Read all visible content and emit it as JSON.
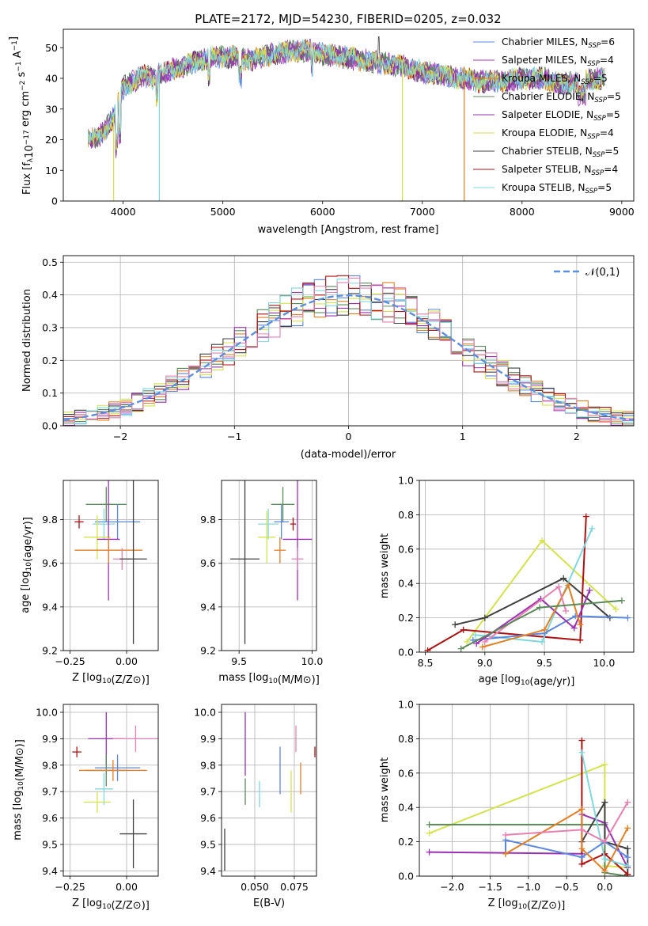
{
  "title": "PLATE=2172, MJD=54230, FIBERID=0205, z=0.032",
  "colors": {
    "Chabrier MILES": "#5b87e0",
    "Salpeter MILES": "#a836b8",
    "Kroupa MILES": "#e67e22",
    "Chabrier ELODIE": "#5a8a5a",
    "Salpeter ELODIE": "#9b2fb5",
    "Kroupa ELODIE": "#d4e34a",
    "Chabrier STELIB": "#404040",
    "Salpeter STELIB": "#b01010",
    "Kroupa STELIB": "#7fd8de",
    "pink": "#e87fb0",
    "normal_curve": "#5b8fe0"
  },
  "chart_data": [
    {
      "id": "spectrum",
      "type": "line",
      "xlabel": "wavelength [Angstrom, rest frame]",
      "ylabel": "Flux [f_λ10^-17 erg cm^-2 s^-1 A^-1]",
      "xlim": [
        3400,
        9120
      ],
      "ylim": [
        0,
        56
      ],
      "xticks": [
        4000,
        5000,
        6000,
        7000,
        8000,
        9000
      ],
      "yticks": [
        0,
        10,
        20,
        30,
        40,
        50
      ],
      "legend_position": "top-right",
      "legend": [
        {
          "label": "Chabrier MILES, N",
          "sub": "SSP",
          "tail": "=6",
          "color_key": "Chabrier MILES"
        },
        {
          "label": "Salpeter MILES, N",
          "sub": "SSP",
          "tail": "=4",
          "color_key": "Salpeter MILES"
        },
        {
          "label": "Kroupa MILES, N",
          "sub": "SSP",
          "tail": "=5",
          "color_key": "Kroupa MILES"
        },
        {
          "label": "Chabrier ELODIE, N",
          "sub": "SSP",
          "tail": "=5",
          "color_key": "Chabrier ELODIE"
        },
        {
          "label": "Salpeter ELODIE, N",
          "sub": "SSP",
          "tail": "=5",
          "color_key": "Salpeter ELODIE"
        },
        {
          "label": "Kroupa ELODIE, N",
          "sub": "SSP",
          "tail": "=4",
          "color_key": "Kroupa ELODIE"
        },
        {
          "label": "Chabrier STELIB, N",
          "sub": "SSP",
          "tail": "=5",
          "color_key": "Chabrier STELIB"
        },
        {
          "label": "Salpeter STELIB, N",
          "sub": "SSP",
          "tail": "=4",
          "color_key": "Salpeter STELIB"
        },
        {
          "label": "Kroupa STELIB, N",
          "sub": "SSP",
          "tail": "=5",
          "color_key": "Kroupa STELIB"
        }
      ],
      "continuum": {
        "x": [
          3650,
          3700,
          3800,
          3850,
          3900,
          4000,
          4100,
          4200,
          4300,
          4400,
          4500,
          4700,
          4900,
          5100,
          5300,
          5500,
          5700,
          5900,
          6000,
          6200,
          6400,
          6600,
          6800,
          7000,
          7200,
          7400,
          7600,
          7800,
          8000,
          8200,
          8400,
          8600,
          8800
        ],
        "y": [
          21,
          20,
          22,
          25,
          27,
          37,
          39,
          41,
          40,
          42,
          43,
          45,
          47,
          47,
          46,
          48,
          49,
          49,
          48,
          47,
          46,
          45,
          44,
          42,
          41,
          40,
          39,
          39,
          40,
          40,
          38,
          39,
          40
        ]
      },
      "dips": [
        {
          "x": 3905,
          "y": 0,
          "color_key": "Kroupa ELODIE"
        },
        {
          "x": 4363,
          "y": 0,
          "color_key": "Kroupa STELIB"
        },
        {
          "x": 6800,
          "y": 0,
          "color_key": "Kroupa ELODIE"
        },
        {
          "x": 7420,
          "y": 0,
          "color_key": "Kroupa MILES"
        }
      ]
    },
    {
      "id": "residual_histogram",
      "type": "histogram",
      "xlabel": "(data-model)/error",
      "ylabel": "Normed distribution",
      "xlim": [
        -2.5,
        2.5
      ],
      "ylim": [
        0,
        0.52
      ],
      "xticks": [
        -2,
        -1,
        0,
        1,
        2
      ],
      "yticks": [
        0.0,
        0.1,
        0.2,
        0.3,
        0.4,
        0.5
      ],
      "grid": true,
      "legend_position": "top-right",
      "legend": [
        {
          "label": "𝒩(0,1)",
          "color_key": "normal_curve"
        }
      ],
      "bin_width": 0.1,
      "bin_start": -2.5,
      "series": [
        {
          "color_key": "Chabrier MILES",
          "noise_seed": 1
        },
        {
          "color_key": "Kroupa MILES",
          "noise_seed": 2
        },
        {
          "color_key": "Chabrier ELODIE",
          "noise_seed": 3
        },
        {
          "color_key": "Salpeter ELODIE",
          "noise_seed": 4
        },
        {
          "color_key": "Kroupa ELODIE",
          "noise_seed": 5
        },
        {
          "color_key": "Chabrier STELIB",
          "noise_seed": 6
        },
        {
          "color_key": "Salpeter STELIB",
          "noise_seed": 7
        },
        {
          "color_key": "Kroupa STELIB",
          "noise_seed": 8
        },
        {
          "color_key": "pink",
          "noise_seed": 9
        }
      ]
    },
    {
      "id": "age_vs_z",
      "type": "errorbar",
      "xlabel": "Z [log10(Z/Z⊙)]",
      "ylabel": "age [log10(age/yr)]",
      "xlim": [
        -0.28,
        0.14
      ],
      "ylim": [
        9.2,
        9.98
      ],
      "xticks": [
        -0.25,
        0.0
      ],
      "yticks": [
        9.2,
        9.4,
        9.6,
        9.8
      ],
      "points": [
        {
          "x": -0.09,
          "y": 9.87,
          "xerr": 0.09,
          "yerr": 0.08,
          "color_key": "Chabrier ELODIE"
        },
        {
          "x": -0.04,
          "y": 9.79,
          "xerr": 0.1,
          "yerr": 0.08,
          "color_key": "Chabrier MILES"
        },
        {
          "x": -0.21,
          "y": 9.79,
          "xerr": 0.02,
          "yerr": 0.03,
          "color_key": "Salpeter STELIB"
        },
        {
          "x": -0.1,
          "y": 9.78,
          "xerr": 0.05,
          "yerr": 0.07,
          "color_key": "Kroupa STELIB"
        },
        {
          "x": -0.13,
          "y": 9.72,
          "xerr": 0.06,
          "yerr": 0.1,
          "color_key": "Kroupa ELODIE"
        },
        {
          "x": -0.08,
          "y": 9.71,
          "xerr": 0.05,
          "yerr": 0.28,
          "color_key": "Salpeter ELODIE"
        },
        {
          "x": -0.08,
          "y": 9.66,
          "xerr": 0.15,
          "yerr": 0.06,
          "color_key": "Kroupa MILES"
        },
        {
          "x": -0.02,
          "y": 9.62,
          "xerr": 0.04,
          "yerr": 0.05,
          "color_key": "pink"
        },
        {
          "x": 0.03,
          "y": 9.62,
          "xerr": 0.06,
          "yerr": 0.39,
          "color_key": "Chabrier STELIB"
        }
      ]
    },
    {
      "id": "age_vs_mass",
      "type": "errorbar",
      "xlabel": "mass [log10(M/M⊙)]",
      "ylabel": "",
      "xlim": [
        9.38,
        10.03
      ],
      "ylim": [
        9.2,
        9.98
      ],
      "xticks": [
        9.5,
        10.0
      ],
      "yticks": [
        9.2,
        9.4,
        9.6,
        9.8
      ],
      "points": [
        {
          "x": 9.8,
          "y": 9.87,
          "xerr": 0.08,
          "yerr": 0.08,
          "color_key": "Chabrier ELODIE"
        },
        {
          "x": 9.79,
          "y": 9.79,
          "xerr": 0.05,
          "yerr": 0.08,
          "color_key": "Chabrier MILES"
        },
        {
          "x": 9.87,
          "y": 9.78,
          "xerr": 0.02,
          "yerr": 0.03,
          "color_key": "Salpeter STELIB"
        },
        {
          "x": 9.7,
          "y": 9.78,
          "xerr": 0.07,
          "yerr": 0.07,
          "color_key": "Kroupa STELIB"
        },
        {
          "x": 9.69,
          "y": 9.72,
          "xerr": 0.06,
          "yerr": 0.12,
          "color_key": "Kroupa ELODIE"
        },
        {
          "x": 9.9,
          "y": 9.71,
          "xerr": 0.1,
          "yerr": 0.28,
          "color_key": "Salpeter ELODIE"
        },
        {
          "x": 9.78,
          "y": 9.66,
          "xerr": 0.04,
          "yerr": 0.06,
          "color_key": "Kroupa MILES"
        },
        {
          "x": 9.9,
          "y": 9.62,
          "xerr": 0.04,
          "yerr": 0.05,
          "color_key": "pink"
        },
        {
          "x": 9.54,
          "y": 9.62,
          "xerr": 0.1,
          "yerr": 0.39,
          "color_key": "Chabrier STELIB"
        }
      ]
    },
    {
      "id": "mass_weight_vs_age",
      "type": "line",
      "xlabel": "age [log10(age/yr)]",
      "ylabel": "mass weight",
      "xlim": [
        8.45,
        10.25
      ],
      "ylim": [
        0.0,
        1.0
      ],
      "xticks": [
        8.5,
        9.0,
        9.5,
        10.0
      ],
      "yticks": [
        0.0,
        0.2,
        0.4,
        0.6,
        0.8,
        1.0
      ],
      "grid": true,
      "series": [
        {
          "color_key": "Kroupa ELODIE",
          "x": [
            8.85,
            9.48,
            10.1
          ],
          "y": [
            0.06,
            0.65,
            0.25
          ]
        },
        {
          "color_key": "Chabrier STELIB",
          "x": [
            8.75,
            9.0,
            9.66,
            10.05
          ],
          "y": [
            0.16,
            0.2,
            0.43,
            0.2
          ]
        },
        {
          "color_key": "Salpeter STELIB",
          "x": [
            8.52,
            8.82,
            9.8,
            9.85
          ],
          "y": [
            0.01,
            0.13,
            0.07,
            0.79
          ]
        },
        {
          "color_key": "Kroupa STELIB",
          "x": [
            8.92,
            9.48,
            9.9
          ],
          "y": [
            0.1,
            0.06,
            0.72
          ]
        },
        {
          "color_key": "Chabrier MILES",
          "x": [
            8.9,
            9.5,
            9.76,
            10.2
          ],
          "y": [
            0.07,
            0.11,
            0.21,
            0.2
          ]
        },
        {
          "color_key": "Salpeter ELODIE",
          "x": [
            8.93,
            9.47,
            9.75,
            9.88
          ],
          "y": [
            0.05,
            0.31,
            0.14,
            0.36
          ]
        },
        {
          "color_key": "Kroupa MILES",
          "x": [
            8.98,
            9.5,
            9.7,
            9.8
          ],
          "y": [
            0.03,
            0.13,
            0.39,
            0.16
          ]
        },
        {
          "color_key": "pink",
          "x": [
            9.0,
            9.62,
            9.68
          ],
          "y": [
            0.06,
            0.38,
            0.24
          ]
        },
        {
          "color_key": "Chabrier ELODIE",
          "x": [
            8.8,
            9.46,
            10.15
          ],
          "y": [
            0.02,
            0.26,
            0.3
          ]
        }
      ]
    },
    {
      "id": "mass_vs_z",
      "type": "errorbar",
      "xlabel": "Z [log10(Z/Z⊙)]",
      "ylabel": "mass [log10(M/M⊙)]",
      "xlim": [
        -0.28,
        0.14
      ],
      "ylim": [
        9.38,
        10.03
      ],
      "xticks": [
        -0.25,
        0.0
      ],
      "yticks": [
        9.4,
        9.5,
        9.6,
        9.7,
        9.8,
        9.9,
        10.0
      ],
      "points": [
        {
          "x": -0.09,
          "y": 9.9,
          "xerr": 0.08,
          "yerr": 0.1,
          "color_key": "Salpeter ELODIE"
        },
        {
          "x": 0.04,
          "y": 9.9,
          "xerr": 0.1,
          "yerr": 0.05,
          "color_key": "pink"
        },
        {
          "x": -0.22,
          "y": 9.85,
          "xerr": 0.02,
          "yerr": 0.02,
          "color_key": "Salpeter STELIB"
        },
        {
          "x": -0.04,
          "y": 9.79,
          "xerr": 0.1,
          "yerr": 0.05,
          "color_key": "Chabrier MILES"
        },
        {
          "x": -0.09,
          "y": 9.78,
          "xerr": 0.09,
          "yerr": 0.06,
          "color_key": "Chabrier ELODIE"
        },
        {
          "x": -0.06,
          "y": 9.78,
          "xerr": 0.15,
          "yerr": 0.04,
          "color_key": "Kroupa MILES"
        },
        {
          "x": -0.1,
          "y": 9.71,
          "xerr": 0.04,
          "yerr": 0.06,
          "color_key": "Kroupa STELIB"
        },
        {
          "x": -0.13,
          "y": 9.66,
          "xerr": 0.06,
          "yerr": 0.04,
          "color_key": "Kroupa ELODIE"
        },
        {
          "x": 0.03,
          "y": 9.54,
          "xerr": 0.06,
          "yerr": 0.13,
          "color_key": "Chabrier STELIB"
        }
      ]
    },
    {
      "id": "mass_vs_ebv",
      "type": "errorbar",
      "xlabel": "E(B-V)",
      "ylabel": "",
      "xlim": [
        0.029,
        0.089
      ],
      "ylim": [
        9.38,
        10.03
      ],
      "xticks": [
        0.05,
        0.075
      ],
      "yticks": [
        9.4,
        9.5,
        9.6,
        9.7,
        9.8,
        9.9,
        10.0
      ],
      "points": [
        {
          "x": 0.044,
          "y": 9.88,
          "yerr": 0.12,
          "color_key": "Salpeter ELODIE"
        },
        {
          "x": 0.076,
          "y": 9.9,
          "yerr": 0.05,
          "color_key": "pink"
        },
        {
          "x": 0.088,
          "y": 9.85,
          "yerr": 0.02,
          "color_key": "Salpeter STELIB"
        },
        {
          "x": 0.066,
          "y": 9.78,
          "yerr": 0.09,
          "color_key": "Chabrier MILES"
        },
        {
          "x": 0.044,
          "y": 9.7,
          "yerr": 0.05,
          "color_key": "Chabrier ELODIE"
        },
        {
          "x": 0.079,
          "y": 9.75,
          "yerr": 0.06,
          "color_key": "Kroupa MILES"
        },
        {
          "x": 0.053,
          "y": 9.69,
          "yerr": 0.05,
          "color_key": "Kroupa STELIB"
        },
        {
          "x": 0.073,
          "y": 9.7,
          "yerr": 0.08,
          "color_key": "Kroupa ELODIE"
        },
        {
          "x": 0.031,
          "y": 9.48,
          "yerr": 0.08,
          "color_key": "Chabrier STELIB"
        }
      ]
    },
    {
      "id": "mass_weight_vs_z",
      "type": "line",
      "xlabel": "Z [log10(Z/Z⊙)]",
      "ylabel": "mass weight",
      "xlim": [
        -2.43,
        0.38
      ],
      "ylim": [
        0.0,
        1.0
      ],
      "xticks": [
        -2.0,
        -1.5,
        -1.0,
        -0.5,
        0.0
      ],
      "yticks": [
        0.0,
        0.2,
        0.4,
        0.6,
        0.8,
        1.0
      ],
      "grid": true,
      "series": [
        {
          "color_key": "Kroupa ELODIE",
          "x": [
            -2.3,
            0.0,
            0.0,
            0.3
          ],
          "y": [
            0.25,
            0.65,
            0.06,
            0.05
          ]
        },
        {
          "color_key": "Chabrier ELODIE",
          "x": [
            -2.3,
            0.0,
            0.0,
            0.3
          ],
          "y": [
            0.3,
            0.3,
            0.02,
            0.0
          ]
        },
        {
          "color_key": "Salpeter ELODIE",
          "x": [
            -2.3,
            -0.3,
            -0.3,
            0.0,
            0.3
          ],
          "y": [
            0.14,
            0.13,
            0.36,
            0.31,
            0.05
          ]
        },
        {
          "color_key": "Chabrier STELIB",
          "x": [
            -0.3,
            0.0,
            0.0,
            0.3,
            0.3
          ],
          "y": [
            0.2,
            0.43,
            0.2,
            0.16,
            0.01
          ]
        },
        {
          "color_key": "Salpeter STELIB",
          "x": [
            -0.3,
            -0.3,
            0.0,
            0.3
          ],
          "y": [
            0.79,
            0.07,
            0.13,
            0.01
          ]
        },
        {
          "color_key": "Kroupa STELIB",
          "x": [
            -0.3,
            0.0,
            0.3
          ],
          "y": [
            0.72,
            0.1,
            0.06
          ]
        },
        {
          "color_key": "Chabrier MILES",
          "x": [
            -1.3,
            -1.3,
            -0.3,
            0.0,
            0.3
          ],
          "y": [
            0.13,
            0.21,
            0.11,
            0.2,
            0.11
          ]
        },
        {
          "color_key": "Kroupa MILES",
          "x": [
            -1.3,
            -0.3,
            -0.3,
            0.0,
            0.3
          ],
          "y": [
            0.13,
            0.39,
            0.16,
            0.03,
            0.28
          ]
        },
        {
          "color_key": "pink",
          "x": [
            -1.3,
            -0.3,
            0.0,
            0.3
          ],
          "y": [
            0.24,
            0.27,
            0.2,
            0.43
          ]
        }
      ]
    }
  ]
}
